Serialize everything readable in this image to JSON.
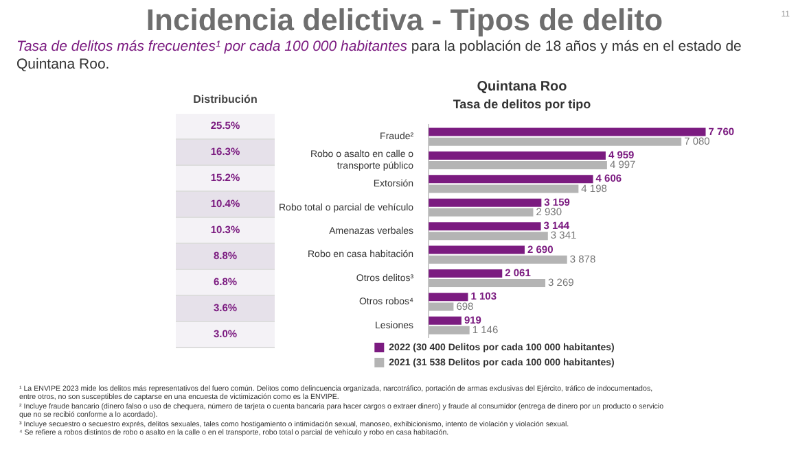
{
  "chart_data": [
    {
      "type": "bar",
      "orientation": "horizontal",
      "title": "Quintana Roo",
      "subtitle": "Tasa de delitos por tipo",
      "categories": [
        "Fraude²",
        "Robo o asalto en calle o transporte público",
        "Extorsión",
        "Robo total o parcial de vehículo",
        "Amenazas verbales",
        "Robo en casa habitación",
        "Otros delitos³",
        "Otros robos⁴",
        "Lesiones"
      ],
      "series": [
        {
          "name": "2022 (30 400 Delitos por cada 100 000 habitantes)",
          "color": "#7b1b80",
          "values": [
            7760,
            4959,
            4606,
            3159,
            3144,
            2690,
            2061,
            1103,
            919
          ],
          "value_labels": [
            "7 760",
            "4 959",
            "4 606",
            "3 159",
            "3 144",
            "2 690",
            "2 061",
            "1 103",
            "919"
          ]
        },
        {
          "name": "2021 (31 538 Delitos por cada 100 000 habitantes)",
          "color": "#b4b4b4",
          "values": [
            7080,
            4997,
            4198,
            2930,
            3341,
            3878,
            3269,
            698,
            1146
          ],
          "value_labels": [
            "7 080",
            "4 997",
            "4 198",
            "2 930",
            "3 341",
            "3 878",
            "3 269",
            "698",
            "1 146"
          ]
        }
      ],
      "legend": "bottom",
      "tick_labels": "y",
      "annotations": [
        "Incidencia delictiva - Tipos de delito",
        "11",
        "Tasa de delitos más frecuentes¹ por cada 100 000 habitantes",
        "para la población de 18 años y más en el estado de Quintana Roo.",
        "¹ La ENVIPE 2023 mide los delitos más representativos del fuero común. Delitos como delincuencia organizada, narcotráfico, portación de armas exclusivas del Ejército, tráfico de indocumentados, entre otros, no son susceptibles de captarse en una encuesta de victimización como es la ENVIPE.",
        "² Incluye fraude bancario (dinero falso o uso de chequera, número de tarjeta o cuenta bancaria para hacer cargos o extraer dinero) y fraude al consumidor (entrega de dinero por un producto o servicio que no se recibió conforme a lo acordado).",
        "³ Incluye secuestro o secuestro exprés, delitos sexuales, tales como hostigamiento o intimidación sexual, manoseo, exhibicionismo, intento de violación y violación sexual.",
        "⁴ Se refiere a robos distintos de robo o asalto en la calle o en el transporte, robo total o parcial de vehículo y robo en casa habitación."
      ]
    },
    {
      "type": "other",
      "title": "Distribución",
      "annotations": [
        "25.5%",
        "16.3%",
        "15.2%",
        "10.4%",
        "10.3%",
        "8.8%",
        "6.8%",
        "3.6%",
        "3.0%"
      ]
    }
  ]
}
